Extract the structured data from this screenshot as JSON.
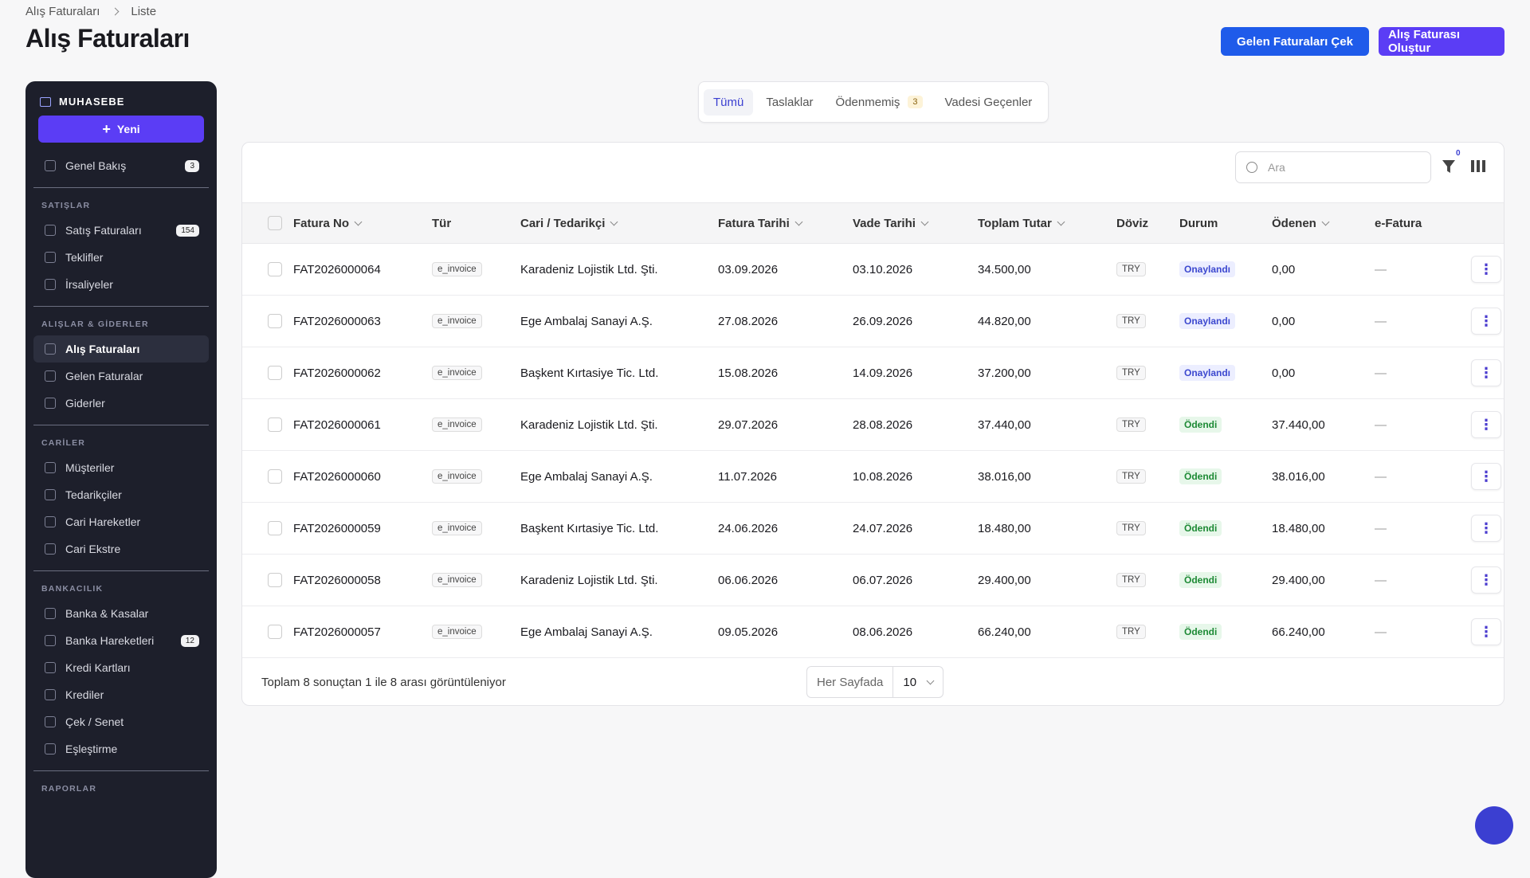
{
  "breadcrumb": [
    "Alış Faturaları",
    "Liste"
  ],
  "header": {
    "title": "Alış Faturaları",
    "actions": [
      "Gelen Faturaları Çek",
      "Alış Faturası Oluştur"
    ]
  },
  "sidebar": {
    "brand": "MUHASEBE",
    "new_button": "Yeni",
    "overview": {
      "label": "Genel Bakış",
      "badge": 3
    },
    "sections": [
      {
        "title": "SATIŞLAR",
        "items": [
          {
            "label": "Satış Faturaları",
            "badge": 154
          },
          {
            "label": "Teklifler"
          },
          {
            "label": "İrsaliyeler"
          }
        ]
      },
      {
        "title": "ALIŞLAR & GİDERLER",
        "items": [
          {
            "label": "Alış Faturaları",
            "active": true
          },
          {
            "label": "Gelen Faturalar"
          },
          {
            "label": "Giderler"
          }
        ]
      },
      {
        "title": "CARİLER",
        "items": [
          {
            "label": "Müşteriler"
          },
          {
            "label": "Tedarikçiler"
          },
          {
            "label": "Cari Hareketler"
          },
          {
            "label": "Cari Ekstre"
          }
        ]
      },
      {
        "title": "BANKACILIK",
        "items": [
          {
            "label": "Banka & Kasalar"
          },
          {
            "label": "Banka Hareketleri",
            "badge": 12
          },
          {
            "label": "Kredi Kartları"
          },
          {
            "label": "Krediler"
          },
          {
            "label": "Çek / Senet"
          },
          {
            "label": "Eşleştirme"
          }
        ]
      },
      {
        "title": "RAPORLAR",
        "items": []
      }
    ]
  },
  "tabs": [
    {
      "label": "Tümü",
      "active": true
    },
    {
      "label": "Taslaklar"
    },
    {
      "label": "Ödenmemiş",
      "badge": 3
    },
    {
      "label": "Vadesi Geçenler"
    }
  ],
  "toolbar": {
    "search_placeholder": "Ara",
    "filter_count": 0
  },
  "table": {
    "columns": [
      "Fatura No",
      "Tür",
      "Cari / Tedarikçi",
      "Fatura Tarihi",
      "Vade Tarihi",
      "Toplam Tutar",
      "Döviz",
      "Durum",
      "Ödenen",
      "e-Fatura"
    ],
    "rows": [
      {
        "cells": [
          "FAT2026000064",
          "e_invoice",
          "Karadeniz Lojistik Ltd. Şti.",
          "03.09.2026",
          "03.10.2026",
          "34.500,00",
          "TRY",
          "Onaylandı",
          "0,00",
          "—"
        ],
        "status_tone": "info"
      },
      {
        "cells": [
          "FAT2026000063",
          "e_invoice",
          "Ege Ambalaj Sanayi A.Ş.",
          "27.08.2026",
          "26.09.2026",
          "44.820,00",
          "TRY",
          "Onaylandı",
          "0,00",
          "—"
        ],
        "status_tone": "info"
      },
      {
        "cells": [
          "FAT2026000062",
          "e_invoice",
          "Başkent Kırtasiye Tic. Ltd.",
          "15.08.2026",
          "14.09.2026",
          "37.200,00",
          "TRY",
          "Onaylandı",
          "0,00",
          "—"
        ],
        "status_tone": "info"
      },
      {
        "cells": [
          "FAT2026000061",
          "e_invoice",
          "Karadeniz Lojistik Ltd. Şti.",
          "29.07.2026",
          "28.08.2026",
          "37.440,00",
          "TRY",
          "Ödendi",
          "37.440,00",
          "—"
        ],
        "status_tone": "success"
      },
      {
        "cells": [
          "FAT2026000060",
          "e_invoice",
          "Ege Ambalaj Sanayi A.Ş.",
          "11.07.2026",
          "10.08.2026",
          "38.016,00",
          "TRY",
          "Ödendi",
          "38.016,00",
          "—"
        ],
        "status_tone": "success"
      },
      {
        "cells": [
          "FAT2026000059",
          "e_invoice",
          "Başkent Kırtasiye Tic. Ltd.",
          "24.06.2026",
          "24.07.2026",
          "18.480,00",
          "TRY",
          "Ödendi",
          "18.480,00",
          "—"
        ],
        "status_tone": "success"
      },
      {
        "cells": [
          "FAT2026000058",
          "e_invoice",
          "Karadeniz Lojistik Ltd. Şti.",
          "06.06.2026",
          "06.07.2026",
          "29.400,00",
          "TRY",
          "Ödendi",
          "29.400,00",
          "—"
        ],
        "status_tone": "success"
      },
      {
        "cells": [
          "FAT2026000057",
          "e_invoice",
          "Ege Ambalaj Sanayi A.Ş.",
          "09.05.2026",
          "08.06.2026",
          "66.240,00",
          "TRY",
          "Ödendi",
          "66.240,00",
          "—"
        ],
        "status_tone": "success"
      }
    ]
  },
  "footer": {
    "summary": "Toplam 8 sonuçtan 1 ile 8 arası görüntüleniyor",
    "page_size_label": "Her Sayfada",
    "page_size": 10
  }
}
